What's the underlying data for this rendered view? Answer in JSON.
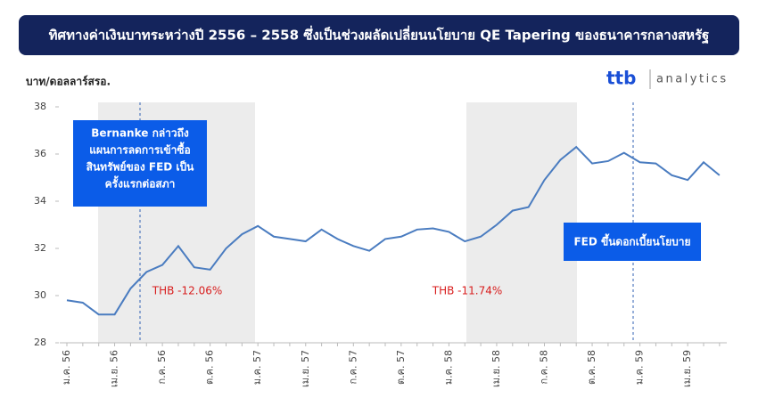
{
  "header": {
    "title": "ทิศทางค่าเงินบาทระหว่างปี 2556 – 2558 ซึ่งเป็นช่วงผลัดเปลี่ยนนโยบาย QE Tapering ของธนาคารกลางสหรัฐ"
  },
  "logo": {
    "brand": "ttb",
    "product": "analytics"
  },
  "chart_data": {
    "type": "line",
    "y_label": "บาท/ดอลลาร์สรอ.",
    "categories": [
      "ม.ค. 56",
      null,
      null,
      "เม.ย. 56",
      null,
      null,
      "ก.ค. 56",
      null,
      null,
      "ต.ค. 56",
      null,
      null,
      "ม.ค. 57",
      null,
      null,
      "เม.ย. 57",
      null,
      null,
      "ก.ค. 57",
      null,
      null,
      "ต.ค. 57",
      null,
      null,
      "ม.ค. 58",
      null,
      null,
      "เม.ย. 58",
      null,
      null,
      "ก.ค. 58",
      null,
      null,
      "ต.ค. 58",
      null,
      null,
      "ม.ค. 59",
      null,
      null,
      "เม.ย. 59",
      null,
      null
    ],
    "series": [
      {
        "name": "THB",
        "color": "#4a7cc0",
        "values": [
          29.8,
          29.7,
          29.2,
          29.2,
          30.3,
          31.0,
          31.3,
          32.1,
          31.2,
          31.1,
          32.0,
          32.6,
          32.95,
          32.5,
          32.4,
          32.3,
          32.8,
          32.4,
          32.1,
          31.9,
          32.4,
          32.5,
          32.8,
          32.85,
          32.7,
          32.3,
          32.5,
          33.0,
          33.6,
          33.75,
          34.9,
          35.75,
          36.3,
          35.6,
          35.7,
          36.05,
          35.65,
          35.6,
          35.1,
          34.9,
          35.65,
          35.1
        ]
      }
    ],
    "ylim": [
      28,
      38
    ],
    "yticks": [
      28,
      30,
      32,
      34,
      36,
      38
    ],
    "grid": false,
    "annotations": [
      {
        "text": [
          "Bernanke กล่าวถึง",
          "แผนการลดการเข้าซื้อ",
          "สินทรัพย์ของ FED เป็น",
          "ครั้งแรกต่อสภา"
        ]
      },
      {
        "text": [
          "FED ขึ้นดอกเบี้ยนโยบาย"
        ]
      },
      {
        "text": [
          "THB -12.06%"
        ]
      },
      {
        "text": [
          "THB -11.74%"
        ]
      }
    ]
  }
}
